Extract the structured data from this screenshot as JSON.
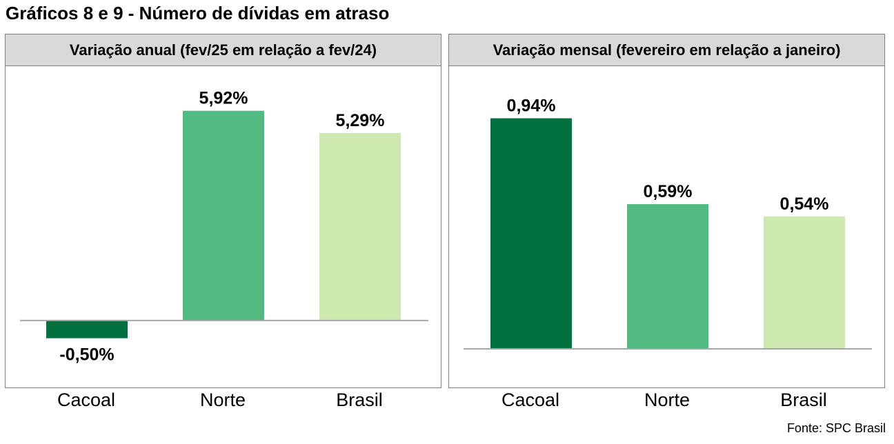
{
  "title": "Gráficos 8 e 9 - Número de dívidas em atraso",
  "source": "Fonte: SPC Brasil",
  "colors": {
    "dark_green": "#017140",
    "mid_green": "#51bb81",
    "light_green": "#cde9b0",
    "header_bg": "#d9d9d9",
    "axis": "#a6a6a6"
  },
  "chart_data": [
    {
      "type": "bar",
      "title": "Variação anual (fev/25 em relação a fev/24)",
      "categories": [
        "Cacoal",
        "Norte",
        "Brasil"
      ],
      "values": [
        -0.5,
        5.92,
        5.29
      ],
      "value_labels": [
        "-0,50%",
        "5,92%",
        "5,29%"
      ],
      "bar_colors": [
        "#017140",
        "#51bb81",
        "#cde9b0"
      ],
      "ylim": [
        -0.8,
        6.4
      ],
      "grid": false,
      "legend": "none"
    },
    {
      "type": "bar",
      "title": "Variação mensal (fevereiro em relação a janeiro)",
      "categories": [
        "Cacoal",
        "Norte",
        "Brasil"
      ],
      "values": [
        0.94,
        0.59,
        0.54
      ],
      "value_labels": [
        "0,94%",
        "0,59%",
        "0,54%"
      ],
      "bar_colors": [
        "#017140",
        "#51bb81",
        "#cde9b0"
      ],
      "ylim": [
        0,
        1.04
      ],
      "grid": false,
      "legend": "none"
    }
  ]
}
